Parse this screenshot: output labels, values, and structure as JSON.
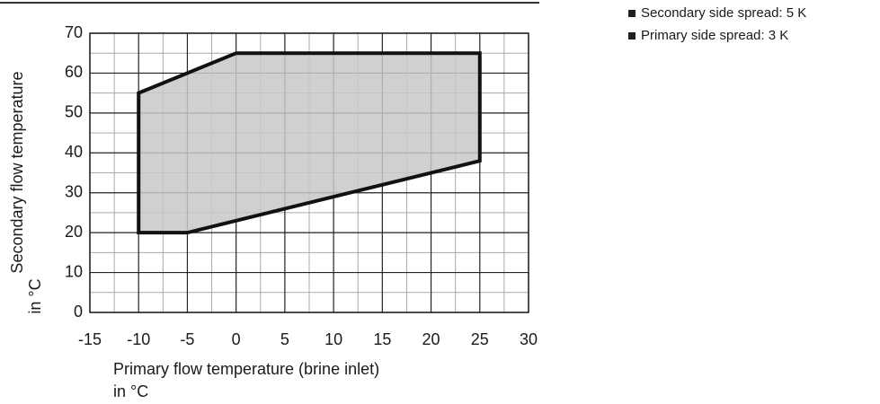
{
  "chart_data": {
    "type": "area",
    "x": [
      -10,
      -5,
      25,
      25,
      0,
      -10
    ],
    "values": [
      20,
      20,
      38,
      65,
      65,
      55
    ],
    "color": "#c8c8c8",
    "stroke": "#111111",
    "xlabel": [
      "Primary flow temperature (brine inlet)",
      "in °C"
    ],
    "ylabel": [
      "Secondary flow temperature",
      "in °C"
    ],
    "xlim": [
      -15,
      30
    ],
    "xticks": [
      -15,
      -10,
      -5,
      0,
      5,
      10,
      15,
      20,
      25,
      30
    ],
    "ylim": [
      0,
      70
    ],
    "yticks": [
      0,
      10,
      20,
      30,
      40,
      50,
      60,
      70
    ],
    "xminorticks": [
      -12.5,
      -7.5,
      -2.5,
      2.5,
      7.5,
      12.5,
      17.5,
      22.5,
      27.5
    ],
    "yminorticks": [
      5,
      15,
      25,
      35,
      45,
      55,
      65
    ],
    "grid": true,
    "notes": [
      "Secondary side spread: 5 K",
      "Primary side spread: 3 K"
    ]
  }
}
